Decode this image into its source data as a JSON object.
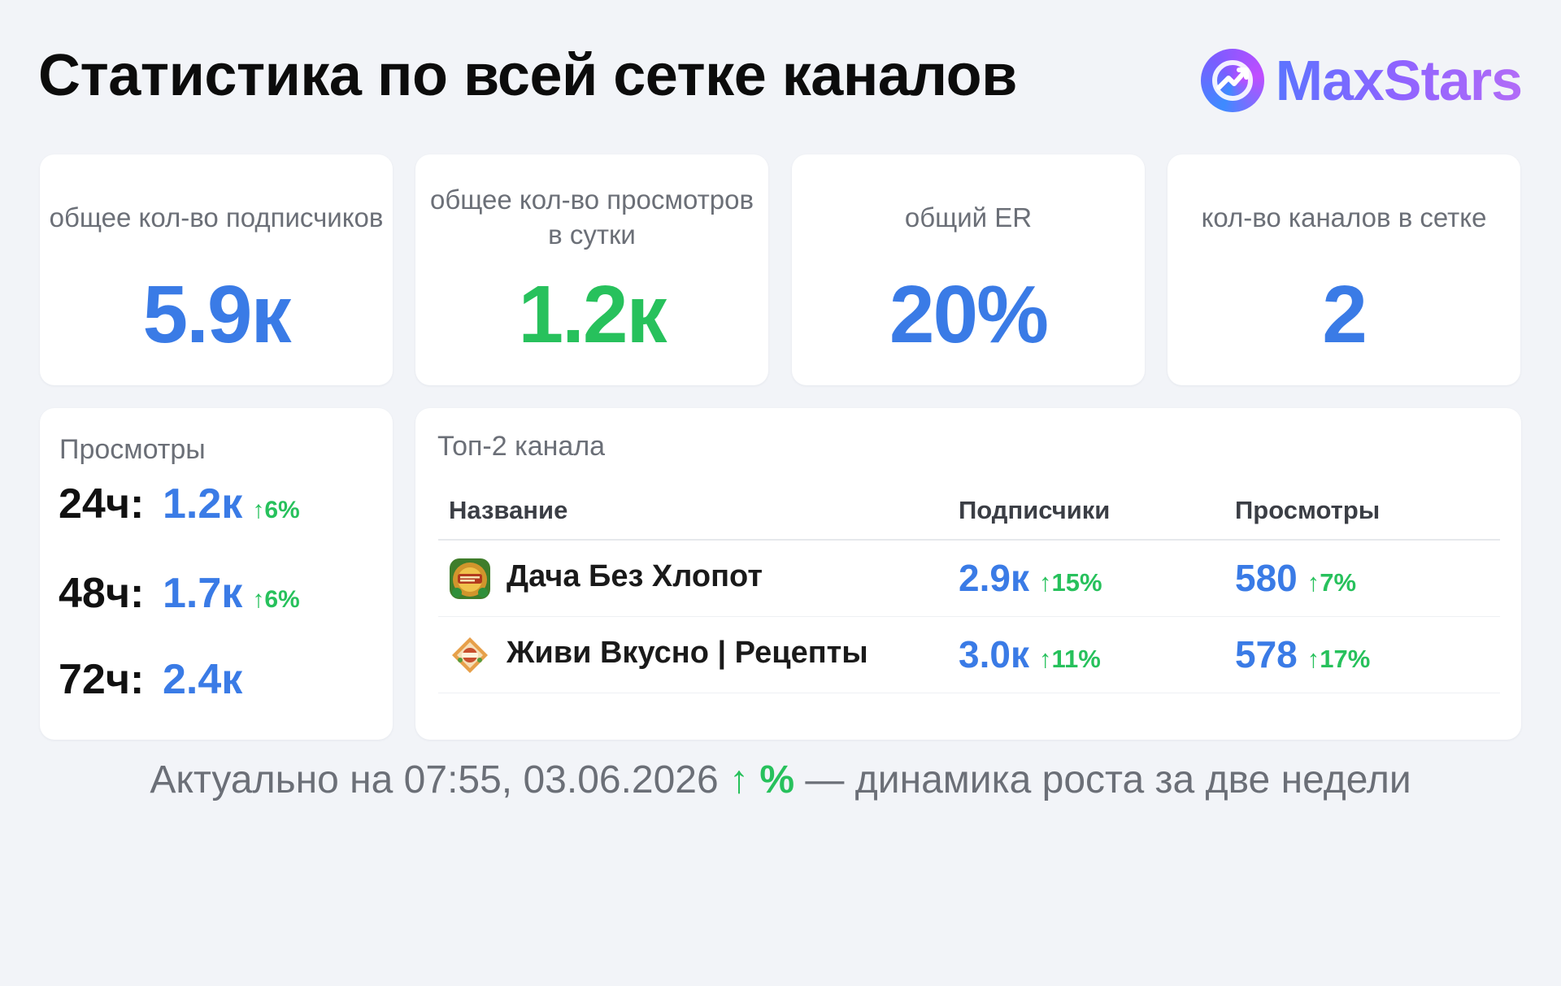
{
  "header": {
    "title": "Статистика по всей сетке каналов",
    "brand": "MaxStars"
  },
  "stats": [
    {
      "label": "общее кол-во подписчиков",
      "value": "5.9к",
      "color": "blue"
    },
    {
      "label": "общее кол-во просмотров в сутки",
      "value": "1.2к",
      "color": "green"
    },
    {
      "label": "общий ER",
      "value": "20%",
      "color": "blue"
    },
    {
      "label": "кол-во каналов в сетке",
      "value": "2",
      "color": "blue"
    }
  ],
  "views": {
    "title": "Просмотры",
    "rows": [
      {
        "period": "24ч:",
        "value": "1.2к",
        "delta": "↑6%"
      },
      {
        "period": "48ч:",
        "value": "1.7к",
        "delta": "↑6%"
      },
      {
        "period": "72ч:",
        "value": "2.4к",
        "delta": ""
      }
    ]
  },
  "top": {
    "title": "Топ-2 канала",
    "columns": {
      "name": "Название",
      "subs": "Подписчики",
      "views": "Просмотры"
    },
    "rows": [
      {
        "icon": "dacha-channel-icon",
        "name": "Дача Без Хлопот",
        "subs": "2.9к",
        "subs_delta": "↑15%",
        "views": "580",
        "views_delta": "↑7%"
      },
      {
        "icon": "zhivi-vkusno-channel-icon",
        "name": "Живи Вкусно | Рецепты",
        "subs": "3.0к",
        "subs_delta": "↑11%",
        "views": "578",
        "views_delta": "↑17%"
      }
    ]
  },
  "footer": {
    "prefix": "Актуально на 07:55, 03.06.2026",
    "marker": "↑ %",
    "suffix": "— динамика роста за две недели"
  },
  "colors": {
    "blue": "#3a7be6",
    "green": "#27c15c",
    "background": "#f2f4f8"
  }
}
